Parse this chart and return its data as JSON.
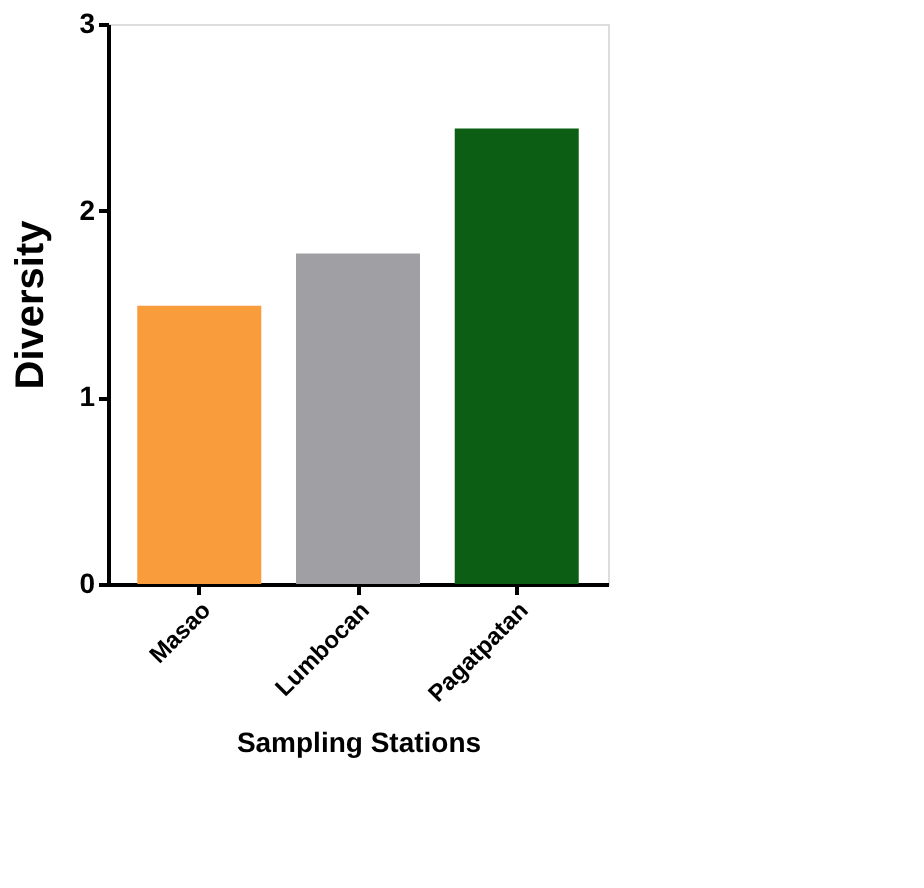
{
  "chart_data": {
    "type": "bar",
    "xlabel": "Sampling Stations",
    "ylabel": "Diversity",
    "categories": [
      "Masao",
      "Lumbocan",
      "Pagatpatan"
    ],
    "values": [
      1.49,
      1.77,
      2.44
    ],
    "colors": [
      "#f99d3c",
      "#a0a0a4",
      "#0b5e13"
    ],
    "ylim": [
      0,
      3
    ],
    "yticks": [
      0,
      1,
      2,
      3
    ],
    "grid": false,
    "legend": false
  }
}
